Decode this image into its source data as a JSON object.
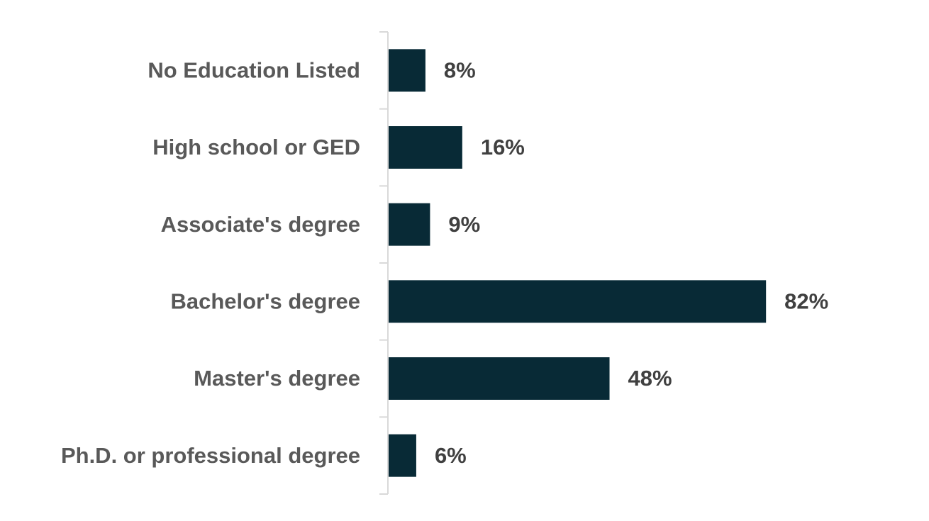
{
  "chart_data": {
    "type": "hbar",
    "categories": [
      "No Education Listed",
      "High school or GED",
      "Associate's degree",
      "Bachelor's degree",
      "Master's degree",
      "Ph.D. or professional degree"
    ],
    "values": [
      8,
      16,
      9,
      82,
      48,
      6
    ],
    "value_labels": [
      "8%",
      "16%",
      "9%",
      "82%",
      "48%",
      "6%"
    ],
    "color": "#082a36"
  }
}
